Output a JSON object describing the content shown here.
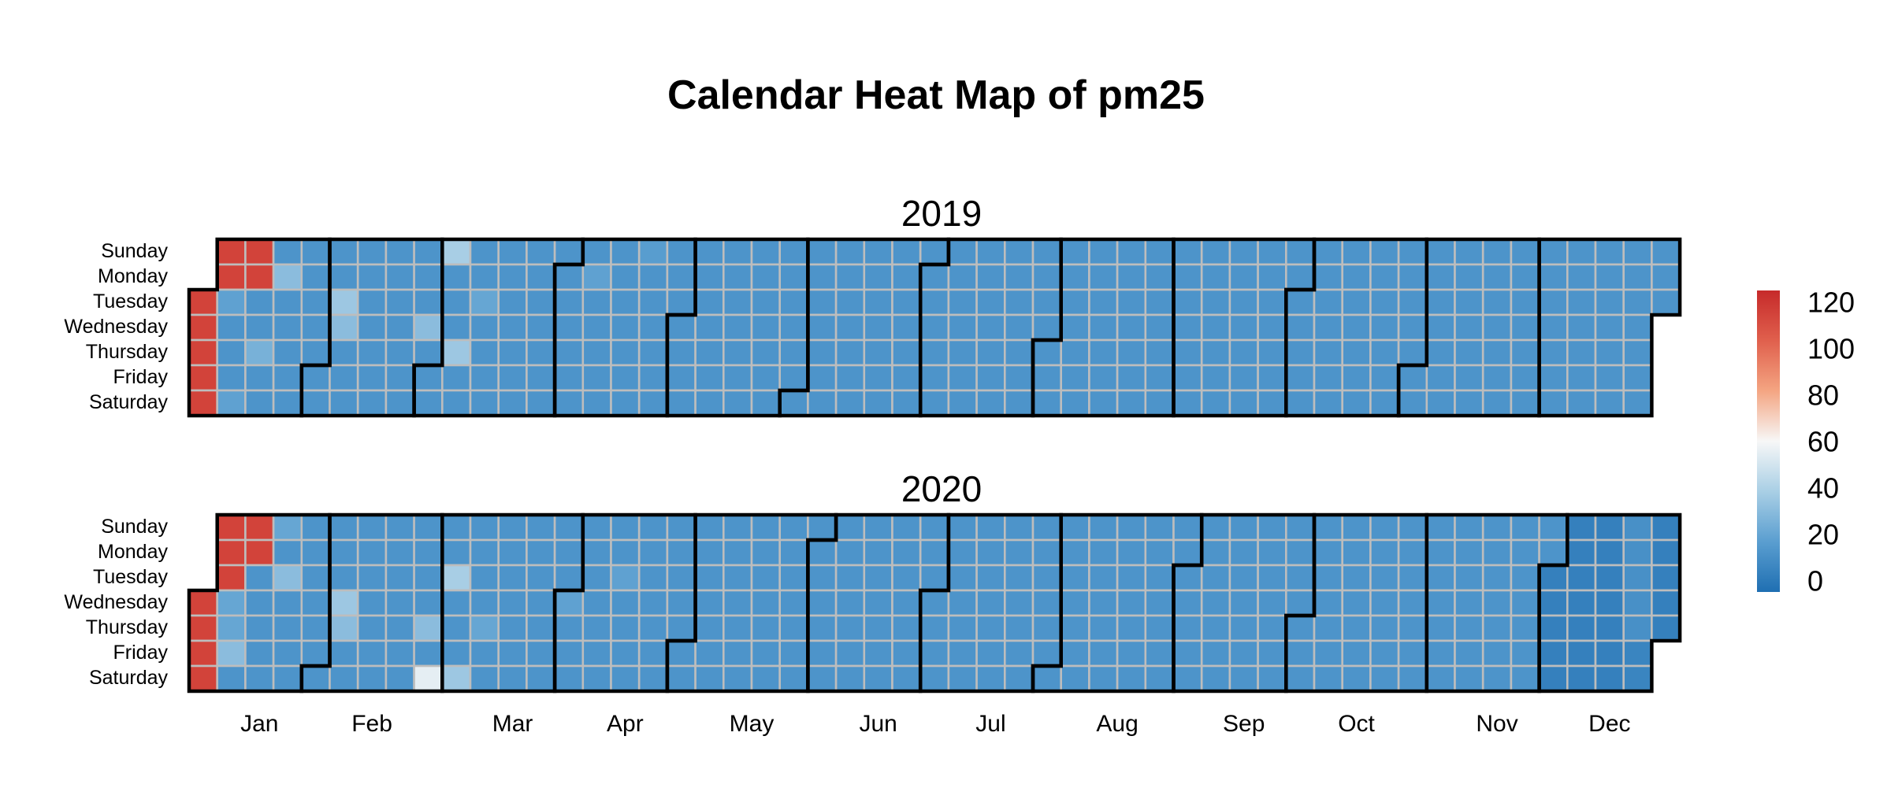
{
  "chart_data": {
    "type": "heatmap",
    "title": "Calendar Heat Map of pm25",
    "weekday_labels": [
      "Sunday",
      "Monday",
      "Tuesday",
      "Wednesday",
      "Thursday",
      "Friday",
      "Saturday"
    ],
    "month_labels": [
      "Jan",
      "Feb",
      "Mar",
      "Apr",
      "May",
      "Jun",
      "Jul",
      "Aug",
      "Sep",
      "Oct",
      "Nov",
      "Dec"
    ],
    "color_scale": {
      "min": -5,
      "max": 125,
      "ticks": [
        0,
        20,
        40,
        60,
        80,
        100,
        120
      ],
      "colors": [
        "#1f6fb2",
        "#5a9ed0",
        "#a9cfe5",
        "#f7f7f7",
        "#f4a582",
        "#e0604d",
        "#c62a2a"
      ]
    },
    "baseline_value": 12,
    "years": [
      {
        "year": "2019",
        "dec_value": 12,
        "special_days": [
          {
            "date": "2019-01-01",
            "value": 115
          },
          {
            "date": "2019-01-02",
            "value": 115
          },
          {
            "date": "2019-01-03",
            "value": 115
          },
          {
            "date": "2019-01-04",
            "value": 115
          },
          {
            "date": "2019-01-05",
            "value": 115
          },
          {
            "date": "2019-01-06",
            "value": 115
          },
          {
            "date": "2019-01-07",
            "value": 115
          },
          {
            "date": "2019-01-08",
            "value": 18
          },
          {
            "date": "2019-01-12",
            "value": 18
          },
          {
            "date": "2019-01-13",
            "value": 115
          },
          {
            "date": "2019-01-14",
            "value": 115
          },
          {
            "date": "2019-01-17",
            "value": 25
          },
          {
            "date": "2019-01-21",
            "value": 30
          },
          {
            "date": "2019-02-05",
            "value": 35
          },
          {
            "date": "2019-02-06",
            "value": 30
          },
          {
            "date": "2019-02-27",
            "value": 30
          },
          {
            "date": "2019-03-03",
            "value": 38
          },
          {
            "date": "2019-03-07",
            "value": 35
          },
          {
            "date": "2019-03-12",
            "value": 20
          },
          {
            "date": "2019-04-08",
            "value": 18
          },
          {
            "date": "2019-04-21",
            "value": 16
          }
        ]
      },
      {
        "year": "2020",
        "dec_value": 3,
        "special_days": [
          {
            "date": "2020-01-01",
            "value": 115
          },
          {
            "date": "2020-01-02",
            "value": 115
          },
          {
            "date": "2020-01-03",
            "value": 115
          },
          {
            "date": "2020-01-04",
            "value": 115
          },
          {
            "date": "2020-01-05",
            "value": 115
          },
          {
            "date": "2020-01-06",
            "value": 115
          },
          {
            "date": "2020-01-07",
            "value": 115
          },
          {
            "date": "2020-01-08",
            "value": 20
          },
          {
            "date": "2020-01-09",
            "value": 20
          },
          {
            "date": "2020-01-10",
            "value": 30
          },
          {
            "date": "2020-01-12",
            "value": 115
          },
          {
            "date": "2020-01-13",
            "value": 115
          },
          {
            "date": "2020-01-19",
            "value": 20
          },
          {
            "date": "2020-01-21",
            "value": 30
          },
          {
            "date": "2020-02-05",
            "value": 35
          },
          {
            "date": "2020-02-06",
            "value": 30
          },
          {
            "date": "2020-02-27",
            "value": 30
          },
          {
            "date": "2020-02-29",
            "value": 55
          },
          {
            "date": "2020-03-03",
            "value": 38
          },
          {
            "date": "2020-03-07",
            "value": 35
          },
          {
            "date": "2020-03-12",
            "value": 20
          },
          {
            "date": "2020-04-01",
            "value": 18
          },
          {
            "date": "2020-04-14",
            "value": 18
          },
          {
            "date": "2020-12-20",
            "value": 10
          },
          {
            "date": "2020-12-21",
            "value": 10
          },
          {
            "date": "2020-12-22",
            "value": 10
          },
          {
            "date": "2020-12-23",
            "value": 10
          },
          {
            "date": "2020-12-24",
            "value": 10
          },
          {
            "date": "2020-12-25",
            "value": 5
          },
          {
            "date": "2020-12-26",
            "value": 5
          }
        ]
      }
    ],
    "xlabel": "",
    "ylabel": ""
  }
}
